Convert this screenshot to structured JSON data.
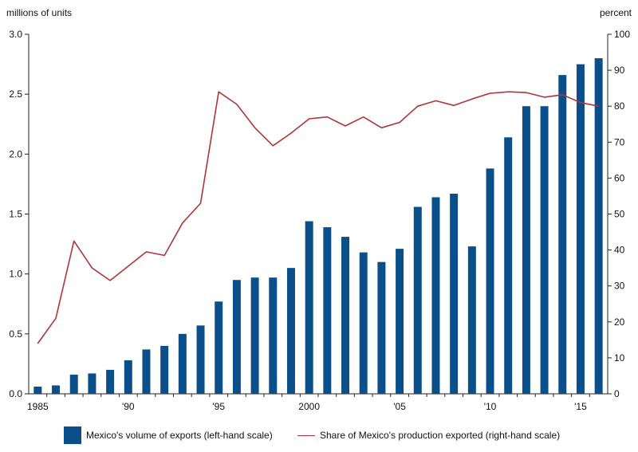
{
  "chart_data": {
    "type": "bar",
    "left_axis_label": "millions of units",
    "right_axis_label": "percent",
    "x": [
      1985,
      1986,
      1987,
      1988,
      1989,
      1990,
      1991,
      1992,
      1993,
      1994,
      1995,
      1996,
      1997,
      1998,
      1999,
      2000,
      2001,
      2002,
      2003,
      2004,
      2005,
      2006,
      2007,
      2008,
      2009,
      2010,
      2011,
      2012,
      2013,
      2014,
      2015,
      2016
    ],
    "x_tick_labels": [
      {
        "year": 1985,
        "label": "1985"
      },
      {
        "year": 1990,
        "label": "'90"
      },
      {
        "year": 1995,
        "label": "'95"
      },
      {
        "year": 2000,
        "label": "2000"
      },
      {
        "year": 2005,
        "label": "'05"
      },
      {
        "year": 2010,
        "label": "'10"
      },
      {
        "year": 2015,
        "label": "'15"
      }
    ],
    "y_left_ticks": [
      "0.0",
      "0.5",
      "1.0",
      "1.5",
      "2.0",
      "2.5",
      "3.0"
    ],
    "y_left_lim": [
      0,
      3.0
    ],
    "y_right_ticks": [
      "0",
      "10",
      "20",
      "30",
      "40",
      "50",
      "60",
      "70",
      "80",
      "90",
      "100"
    ],
    "y_right_lim": [
      0,
      100
    ],
    "series": [
      {
        "name": "Mexico's volume of exports (left-hand scale)",
        "type": "bar",
        "axis": "left",
        "color": "#0b4f8a",
        "values": [
          0.06,
          0.07,
          0.16,
          0.17,
          0.2,
          0.28,
          0.37,
          0.4,
          0.5,
          0.57,
          0.77,
          0.95,
          0.97,
          0.97,
          1.05,
          1.44,
          1.39,
          1.31,
          1.18,
          1.1,
          1.21,
          1.56,
          1.64,
          1.67,
          1.23,
          1.88,
          2.14,
          2.4,
          2.4,
          2.66,
          2.75,
          2.8
        ]
      },
      {
        "name": "Share of Mexico's production exported (right-hand scale)",
        "type": "line",
        "axis": "right",
        "color": "#b0343c",
        "values": [
          14.0,
          21.0,
          42.5,
          35.0,
          31.5,
          35.5,
          39.5,
          38.5,
          47.5,
          53.0,
          84.0,
          80.5,
          74.0,
          69.0,
          72.5,
          76.5,
          77.0,
          74.5,
          77.0,
          74.0,
          75.5,
          80.0,
          81.5,
          80.2,
          82.0,
          83.6,
          84.0,
          83.8,
          82.5,
          83.2,
          81.0,
          80.0
        ]
      }
    ]
  }
}
